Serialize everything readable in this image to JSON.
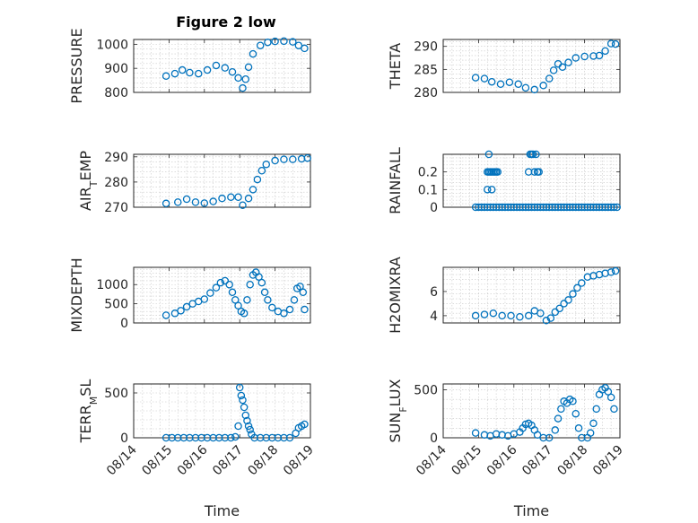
{
  "title": "Figure 2 low",
  "colors": {
    "marker": "#0072BD",
    "axes": "#262626",
    "grid": "#c8c8c8"
  },
  "chart_data": [
    {
      "type": "scatter",
      "ylabel": "PRESSURE",
      "xlabel": "",
      "xlim": [
        "08/14",
        "08/19"
      ],
      "ylim": [
        800,
        1020
      ],
      "yticks": [
        800,
        900,
        1000
      ],
      "xticks": [
        "08/14",
        "08/15",
        "08/16",
        "08/17",
        "08/18",
        "08/19"
      ],
      "grid": true,
      "show_x_tick_labels": false,
      "x": [
        "08/14 22:00",
        "08/15 04:00",
        "08/15 09:00",
        "08/15 14:00",
        "08/15 20:00",
        "08/16 02:00",
        "08/16 08:00",
        "08/16 14:00",
        "08/16 19:00",
        "08/16 23:00",
        "08/17 02:00",
        "08/17 04:00",
        "08/17 06:00",
        "08/17 09:00",
        "08/17 14:00",
        "08/17 19:00",
        "08/18 00:00",
        "08/18 06:00",
        "08/18 12:00",
        "08/18 16:00",
        "08/18 20:00"
      ],
      "y": [
        868,
        878,
        893,
        882,
        878,
        893,
        912,
        902,
        885,
        860,
        818,
        855,
        905,
        960,
        995,
        1008,
        1012,
        1013,
        1010,
        995,
        983
      ]
    },
    {
      "type": "scatter",
      "ylabel": "THETA",
      "xlabel": "",
      "xlim": [
        "08/14",
        "08/19"
      ],
      "ylim": [
        280,
        291.5
      ],
      "yticks": [
        280,
        285,
        290
      ],
      "xticks": [
        "08/14",
        "08/15",
        "08/16",
        "08/17",
        "08/18",
        "08/19"
      ],
      "grid": true,
      "show_x_tick_labels": false,
      "x": [
        "08/14 22:00",
        "08/15 04:00",
        "08/15 09:00",
        "08/15 15:00",
        "08/15 21:00",
        "08/16 03:00",
        "08/16 08:00",
        "08/16 14:00",
        "08/16 20:00",
        "08/17 00:00",
        "08/17 03:00",
        "08/17 06:00",
        "08/17 09:00",
        "08/17 13:00",
        "08/17 18:00",
        "08/18 00:00",
        "08/18 06:00",
        "08/18 10:00",
        "08/18 14:00",
        "08/18 18:00",
        "08/18 21:00"
      ],
      "y": [
        283.2,
        283,
        282.3,
        281.8,
        282.2,
        281.8,
        281,
        280.6,
        281.5,
        283,
        284.8,
        286.2,
        285.5,
        286.5,
        287.5,
        287.8,
        287.9,
        288,
        289,
        290.6,
        290.5
      ]
    },
    {
      "type": "scatter",
      "ylabel": "AIR_TEMP",
      "xlabel": "",
      "xlim": [
        "08/14",
        "08/19"
      ],
      "ylim": [
        270,
        291
      ],
      "yticks": [
        270,
        280,
        290
      ],
      "xticks": [
        "08/14",
        "08/15",
        "08/16",
        "08/17",
        "08/18",
        "08/19"
      ],
      "grid": true,
      "show_x_tick_labels": false,
      "x": [
        "08/14 22:00",
        "08/15 06:00",
        "08/15 12:00",
        "08/15 18:00",
        "08/16 00:00",
        "08/16 06:00",
        "08/16 12:00",
        "08/16 18:00",
        "08/16 23:00",
        "08/17 02:00",
        "08/17 06:00",
        "08/17 09:00",
        "08/17 12:00",
        "08/17 15:00",
        "08/17 18:00",
        "08/18 00:00",
        "08/18 06:00",
        "08/18 12:00",
        "08/18 18:00",
        "08/18 22:00"
      ],
      "y": [
        271.5,
        272,
        273.2,
        272,
        271.6,
        272.3,
        273.5,
        274,
        274,
        270.8,
        273.5,
        277,
        281,
        284.5,
        287,
        288.5,
        289,
        289,
        289.2,
        289.5
      ]
    },
    {
      "type": "scatter",
      "ylabel": "RAINFALL",
      "xlabel": "",
      "xlim": [
        "08/14",
        "08/19"
      ],
      "ylim": [
        0,
        0.3
      ],
      "yticks": [
        0,
        0.1,
        0.2
      ],
      "xticks": [
        "08/14",
        "08/15",
        "08/16",
        "08/17",
        "08/18",
        "08/19"
      ],
      "grid": true,
      "show_x_tick_labels": false,
      "x": [
        "08/14 22:00",
        "08/15 00:00",
        "08/15 02:00",
        "08/15 04:00",
        "08/15 06:00",
        "08/15 08:00",
        "08/15 10:00",
        "08/15 12:00",
        "08/15 14:00",
        "08/15 16:00",
        "08/15 18:00",
        "08/15 20:00",
        "08/15 22:00",
        "08/16 00:00",
        "08/16 02:00",
        "08/16 04:00",
        "08/16 06:00",
        "08/16 08:00",
        "08/16 10:00",
        "08/16 12:00",
        "08/16 14:00",
        "08/16 16:00",
        "08/16 18:00",
        "08/16 20:00",
        "08/16 22:00",
        "08/17 00:00",
        "08/17 02:00",
        "08/17 04:00",
        "08/17 06:00",
        "08/17 08:00",
        "08/17 10:00",
        "08/17 12:00",
        "08/17 14:00",
        "08/17 16:00",
        "08/17 18:00",
        "08/17 20:00",
        "08/17 22:00",
        "08/18 00:00",
        "08/18 02:00",
        "08/18 04:00",
        "08/18 06:00",
        "08/18 08:00",
        "08/18 10:00",
        "08/18 12:00",
        "08/18 14:00",
        "08/18 16:00",
        "08/18 18:00",
        "08/18 20:00",
        "08/18 22:00",
        "08/15 06:00",
        "08/15 07:00",
        "08/15 08:00",
        "08/15 09:00",
        "08/15 10:00",
        "08/15 11:00",
        "08/15 12:00",
        "08/15 13:00",
        "08/15 06:00",
        "08/15 09:00",
        "08/15 07:00",
        "08/16 11:00",
        "08/16 12:00",
        "08/16 13:00",
        "08/16 14:00",
        "08/16 16:00",
        "08/16 17:00",
        "08/16 15:00",
        "08/16 10:00"
      ],
      "y": [
        0,
        0,
        0,
        0,
        0,
        0,
        0,
        0,
        0,
        0,
        0,
        0,
        0,
        0,
        0,
        0,
        0,
        0,
        0,
        0,
        0,
        0,
        0,
        0,
        0,
        0,
        0,
        0,
        0,
        0,
        0,
        0,
        0,
        0,
        0,
        0,
        0,
        0,
        0,
        0,
        0,
        0,
        0,
        0,
        0,
        0,
        0,
        0,
        0,
        0.2,
        0.2,
        0.2,
        0.2,
        0.2,
        0.2,
        0.2,
        0.2,
        0.1,
        0.1,
        0.3,
        0.3,
        0.3,
        0.3,
        0.2,
        0.2,
        0.2,
        0.3,
        0.2
      ]
    },
    {
      "type": "scatter",
      "ylabel": "MIXDEPTH",
      "xlabel": "",
      "xlim": [
        "08/14",
        "08/19"
      ],
      "ylim": [
        0,
        1450
      ],
      "yticks": [
        0,
        500,
        1000
      ],
      "xticks": [
        "08/14",
        "08/15",
        "08/16",
        "08/17",
        "08/18",
        "08/19"
      ],
      "grid": true,
      "show_x_tick_labels": false,
      "x": [
        "08/14 22:00",
        "08/15 04:00",
        "08/15 08:00",
        "08/15 12:00",
        "08/15 16:00",
        "08/15 20:00",
        "08/16 00:00",
        "08/16 04:00",
        "08/16 08:00",
        "08/16 11:00",
        "08/16 14:00",
        "08/16 17:00",
        "08/16 19:00",
        "08/16 21:00",
        "08/16 23:00",
        "08/17 01:00",
        "08/17 03:00",
        "08/17 05:00",
        "08/17 07:00",
        "08/17 09:00",
        "08/17 11:00",
        "08/17 13:00",
        "08/17 15:00",
        "08/17 17:00",
        "08/17 19:00",
        "08/17 22:00",
        "08/18 02:00",
        "08/18 06:00",
        "08/18 10:00",
        "08/18 13:00",
        "08/18 15:00",
        "08/18 17:00",
        "08/18 19:00",
        "08/18 20:00"
      ],
      "y": [
        200,
        250,
        320,
        420,
        500,
        560,
        620,
        780,
        920,
        1050,
        1100,
        1000,
        800,
        600,
        450,
        300,
        250,
        600,
        1000,
        1250,
        1320,
        1200,
        1050,
        800,
        600,
        400,
        300,
        250,
        350,
        600,
        900,
        950,
        800,
        350
      ]
    },
    {
      "type": "scatter",
      "ylabel": "H2OMIXRA",
      "xlabel": "",
      "xlim": [
        "08/14",
        "08/19"
      ],
      "ylim": [
        3.4,
        8
      ],
      "yticks": [
        4,
        6
      ],
      "xticks": [
        "08/14",
        "08/15",
        "08/16",
        "08/17",
        "08/18",
        "08/19"
      ],
      "grid": true,
      "show_x_tick_labels": false,
      "x": [
        "08/14 22:00",
        "08/15 04:00",
        "08/15 10:00",
        "08/15 16:00",
        "08/15 22:00",
        "08/16 04:00",
        "08/16 10:00",
        "08/16 14:00",
        "08/16 18:00",
        "08/16 22:00",
        "08/17 01:00",
        "08/17 04:00",
        "08/17 07:00",
        "08/17 10:00",
        "08/17 13:00",
        "08/17 16:00",
        "08/17 19:00",
        "08/17 22:00",
        "08/18 02:00",
        "08/18 06:00",
        "08/18 10:00",
        "08/18 14:00",
        "08/18 18:00",
        "08/18 21:00"
      ],
      "y": [
        4.0,
        4.1,
        4.2,
        4.0,
        4.0,
        3.9,
        4.0,
        4.4,
        4.2,
        3.6,
        3.8,
        4.3,
        4.6,
        5.0,
        5.3,
        5.8,
        6.3,
        6.7,
        7.2,
        7.3,
        7.4,
        7.5,
        7.6,
        7.7
      ]
    },
    {
      "type": "scatter",
      "ylabel": "TERR_MSL",
      "xlabel": "Time",
      "xlim": [
        "08/14",
        "08/19"
      ],
      "ylim": [
        0,
        600
      ],
      "yticks": [
        0,
        500
      ],
      "xticks": [
        "08/14",
        "08/15",
        "08/16",
        "08/17",
        "08/18",
        "08/19"
      ],
      "grid": true,
      "show_x_tick_labels": true,
      "x": [
        "08/14 22:00",
        "08/15 02:00",
        "08/15 06:00",
        "08/15 10:00",
        "08/15 14:00",
        "08/15 18:00",
        "08/15 22:00",
        "08/16 02:00",
        "08/16 06:00",
        "08/16 10:00",
        "08/16 14:00",
        "08/16 18:00",
        "08/16 21:00",
        "08/16 23:00",
        "08/17 00:00",
        "08/17 01:00",
        "08/17 02:00",
        "08/17 03:00",
        "08/17 04:00",
        "08/17 05:00",
        "08/17 06:00",
        "08/17 07:00",
        "08/17 08:00",
        "08/17 10:00",
        "08/17 14:00",
        "08/17 18:00",
        "08/17 22:00",
        "08/18 02:00",
        "08/18 06:00",
        "08/18 10:00",
        "08/18 14:00",
        "08/18 16:00",
        "08/18 18:00",
        "08/18 20:00"
      ],
      "y": [
        0,
        0,
        0,
        0,
        0,
        0,
        0,
        0,
        0,
        0,
        0,
        0,
        10,
        130,
        560,
        470,
        420,
        340,
        250,
        190,
        130,
        90,
        40,
        0,
        0,
        0,
        0,
        0,
        0,
        0,
        50,
        110,
        130,
        150
      ]
    },
    {
      "type": "scatter",
      "ylabel": "SUN_FLUX",
      "xlabel": "Time",
      "xlim": [
        "08/14",
        "08/19"
      ],
      "ylim": [
        0,
        560
      ],
      "yticks": [
        0,
        500
      ],
      "xticks": [
        "08/14",
        "08/15",
        "08/16",
        "08/17",
        "08/18",
        "08/19"
      ],
      "grid": true,
      "show_x_tick_labels": true,
      "x": [
        "08/14 22:00",
        "08/15 04:00",
        "08/15 08:00",
        "08/15 12:00",
        "08/15 16:00",
        "08/15 20:00",
        "08/16 00:00",
        "08/16 04:00",
        "08/16 06:00",
        "08/16 08:00",
        "08/16 10:00",
        "08/16 12:00",
        "08/16 14:00",
        "08/16 16:00",
        "08/16 20:00",
        "08/17 00:00",
        "08/17 04:00",
        "08/17 06:00",
        "08/17 08:00",
        "08/17 10:00",
        "08/17 12:00",
        "08/17 14:00",
        "08/17 16:00",
        "08/17 18:00",
        "08/17 20:00",
        "08/17 22:00",
        "08/18 02:00",
        "08/18 04:00",
        "08/18 06:00",
        "08/18 08:00",
        "08/18 10:00",
        "08/18 12:00",
        "08/18 14:00",
        "08/18 16:00",
        "08/18 18:00",
        "08/18 20:00"
      ],
      "y": [
        50,
        30,
        20,
        40,
        30,
        20,
        40,
        60,
        100,
        140,
        150,
        130,
        80,
        30,
        0,
        0,
        80,
        200,
        300,
        380,
        360,
        400,
        380,
        250,
        100,
        0,
        0,
        50,
        150,
        300,
        450,
        500,
        520,
        480,
        420,
        300
      ]
    }
  ]
}
